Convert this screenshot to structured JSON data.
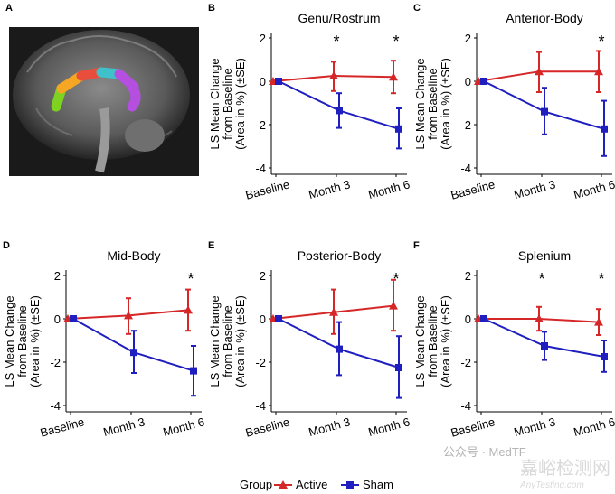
{
  "panel_a": {
    "letter": "A",
    "image": "sagittal brain MRI with colored corpus callosum segments",
    "segment_colors": [
      "#7ed321",
      "#f5a623",
      "#e94e3c",
      "#3fc1c9",
      "#b44fe0"
    ]
  },
  "legend": {
    "title": "Group",
    "items": [
      {
        "name": "Active",
        "color": "#d62728",
        "marker": "triangle"
      },
      {
        "name": "Sham",
        "color": "#1f1fbf",
        "marker": "square"
      }
    ],
    "placement": "bottom"
  },
  "watermark": {
    "text1": "公众号 · MedTF",
    "text2": "嘉峪检测网",
    "text3": "AnyTesting.com"
  },
  "chart_data": [
    {
      "letter": "B",
      "type": "line",
      "title": "Genu/Rostrum",
      "ylabel": [
        "LS Mean Change",
        "from Baseline",
        "(Area in %) (±SE)"
      ],
      "categories": [
        "Baseline",
        "Month 3",
        "Month 6"
      ],
      "ylim": [
        -4.5,
        2.2
      ],
      "yticks": [
        "2",
        "0",
        "-2",
        "-4"
      ],
      "significant": [
        false,
        true,
        true
      ],
      "series": [
        {
          "name": "Active",
          "values": [
            0,
            0.25,
            0.2
          ],
          "lower": [
            0,
            -0.45,
            -0.55
          ],
          "upper": [
            0,
            0.9,
            0.95
          ]
        },
        {
          "name": "Sham",
          "values": [
            0,
            -1.35,
            -2.2
          ],
          "lower": [
            0,
            -2.15,
            -3.1
          ],
          "upper": [
            0,
            -0.55,
            -1.25
          ]
        }
      ]
    },
    {
      "letter": "C",
      "type": "line",
      "title": "Anterior-Body",
      "ylabel": [
        "LS Mean Change",
        "from Baseline",
        "(Area in %) (±SE)"
      ],
      "categories": [
        "Baseline",
        "Month 3",
        "Month 6"
      ],
      "ylim": [
        -4.5,
        2.2
      ],
      "yticks": [
        "2",
        "0",
        "-2",
        "-4"
      ],
      "significant": [
        false,
        false,
        true
      ],
      "series": [
        {
          "name": "Active",
          "values": [
            0,
            0.45,
            0.45
          ],
          "lower": [
            0,
            -0.5,
            -0.5
          ],
          "upper": [
            0,
            1.35,
            1.4
          ]
        },
        {
          "name": "Sham",
          "values": [
            0,
            -1.4,
            -2.2
          ],
          "lower": [
            0,
            -2.45,
            -3.45
          ],
          "upper": [
            0,
            -0.3,
            -0.9
          ]
        }
      ]
    },
    {
      "letter": "D",
      "type": "line",
      "title": "Mid-Body",
      "ylabel": [
        "LS Mean Change",
        "from Baseline",
        "(Area in %) (±SE)"
      ],
      "categories": [
        "Baseline",
        "Month 3",
        "Month 6"
      ],
      "ylim": [
        -4.5,
        2.2
      ],
      "yticks": [
        "2",
        "0",
        "-2",
        "-4"
      ],
      "significant": [
        false,
        false,
        true
      ],
      "series": [
        {
          "name": "Active",
          "values": [
            0,
            0.15,
            0.4
          ],
          "lower": [
            0,
            -0.7,
            -0.55
          ],
          "upper": [
            0,
            0.95,
            1.35
          ]
        },
        {
          "name": "Sham",
          "values": [
            0,
            -1.55,
            -2.4
          ],
          "lower": [
            0,
            -2.5,
            -3.55
          ],
          "upper": [
            0,
            -0.55,
            -1.25
          ]
        }
      ]
    },
    {
      "letter": "E",
      "type": "line",
      "title": "Posterior-Body",
      "ylabel": [
        "LS Mean Change",
        "from Baseline",
        "(Area in %) (±SE)"
      ],
      "categories": [
        "Baseline",
        "Month 3",
        "Month 6"
      ],
      "ylim": [
        -4.5,
        2.2
      ],
      "yticks": [
        "2",
        "0",
        "-2",
        "-4"
      ],
      "significant": [
        false,
        false,
        true
      ],
      "series": [
        {
          "name": "Active",
          "values": [
            0,
            0.3,
            0.6
          ],
          "lower": [
            0,
            -0.7,
            -0.55
          ],
          "upper": [
            0,
            1.35,
            1.8
          ]
        },
        {
          "name": "Sham",
          "values": [
            0,
            -1.4,
            -2.25
          ],
          "lower": [
            0,
            -2.6,
            -3.65
          ],
          "upper": [
            0,
            -0.15,
            -0.8
          ]
        }
      ]
    },
    {
      "letter": "F",
      "type": "line",
      "title": "Splenium",
      "ylabel": [
        "LS Mean Change",
        "from Baseline",
        "(Area in %) (±SE)"
      ],
      "categories": [
        "Baseline",
        "Month 3",
        "Month 6"
      ],
      "ylim": [
        -4.5,
        2.2
      ],
      "yticks": [
        "2",
        "0",
        "-2",
        "-4"
      ],
      "significant": [
        false,
        true,
        true
      ],
      "series": [
        {
          "name": "Active",
          "values": [
            0,
            0.0,
            -0.15
          ],
          "lower": [
            0,
            -0.55,
            -0.75
          ],
          "upper": [
            0,
            0.55,
            0.45
          ]
        },
        {
          "name": "Sham",
          "values": [
            0,
            -1.25,
            -1.75
          ],
          "lower": [
            0,
            -1.9,
            -2.45
          ],
          "upper": [
            0,
            -0.6,
            -1.0
          ]
        }
      ]
    }
  ]
}
